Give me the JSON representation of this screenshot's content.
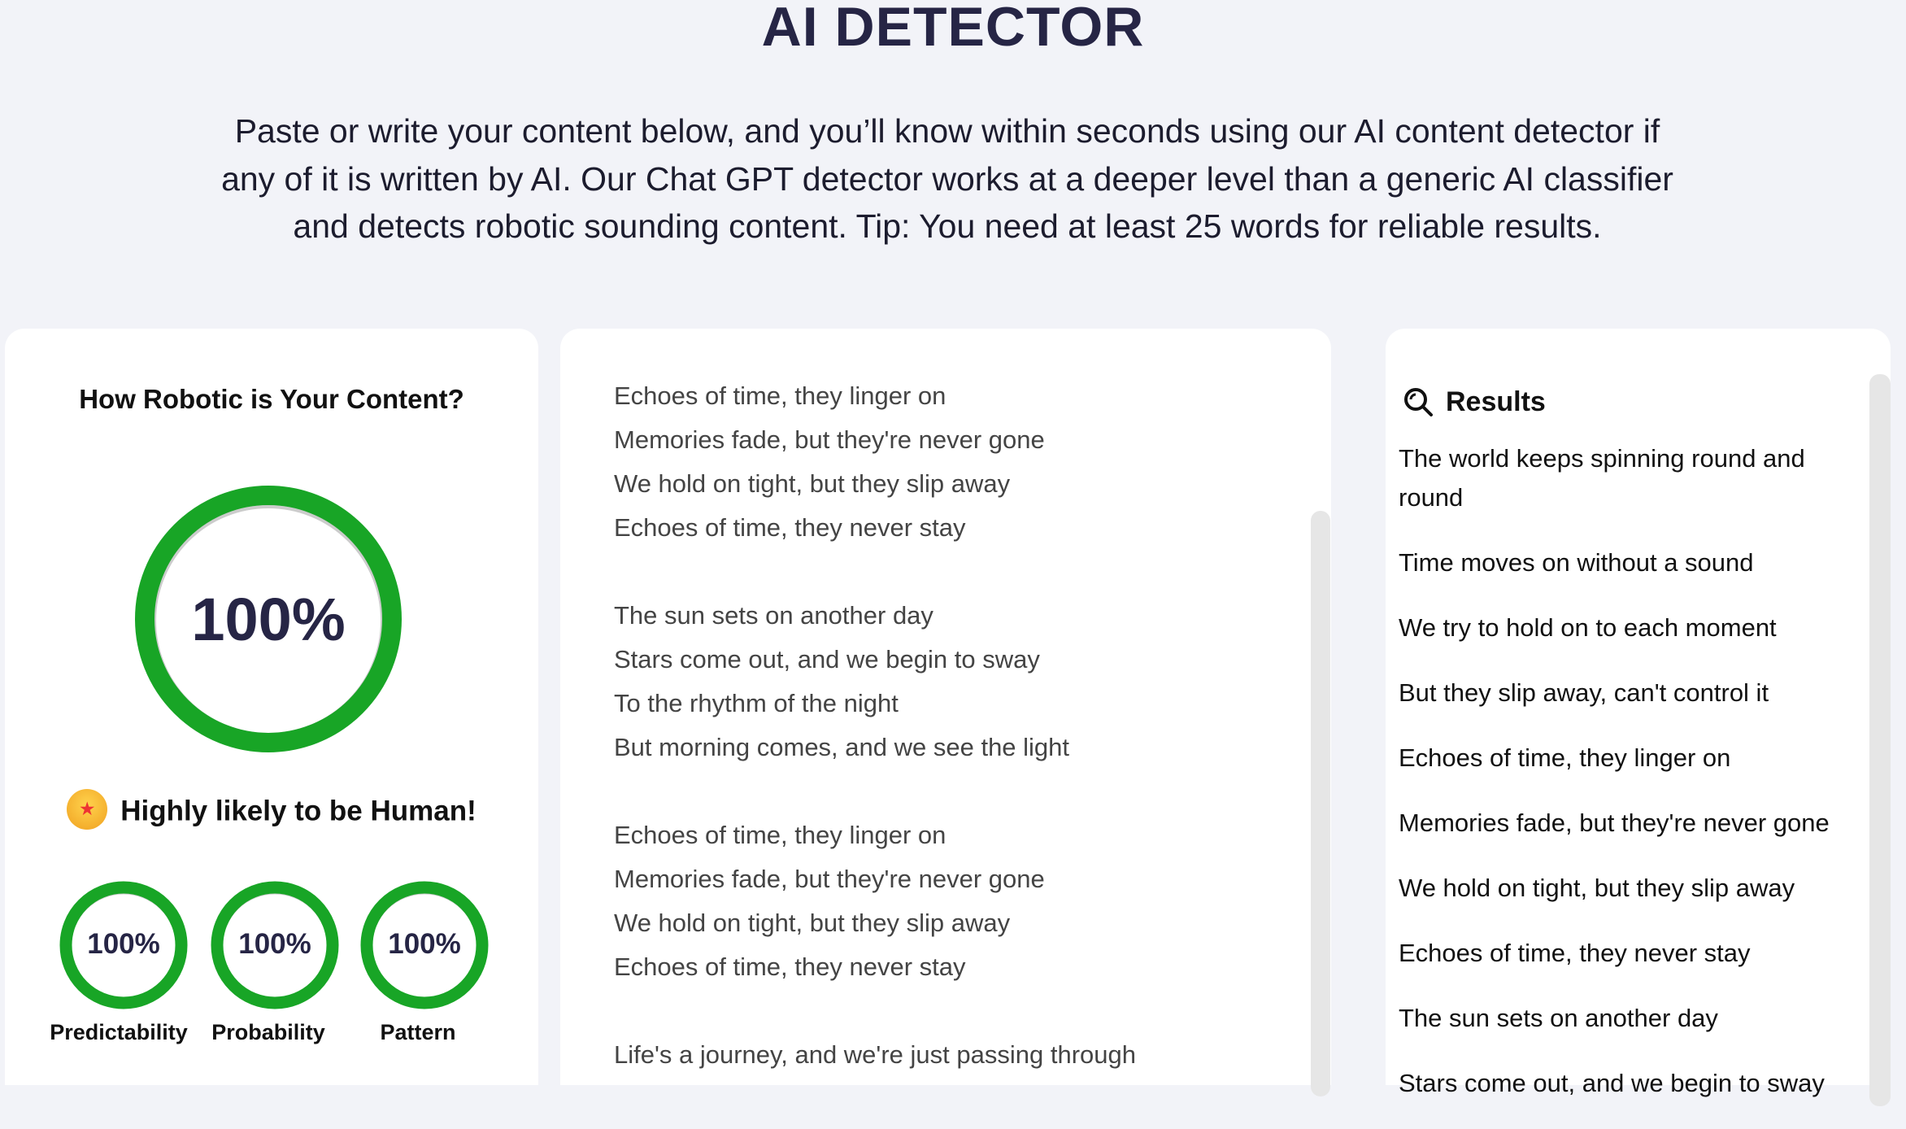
{
  "header": {
    "title": "AI DETECTOR",
    "intro_lines": [
      "Paste or write your content below, and you’ll know within seconds using our AI content detector if",
      "any of it is written by AI. Our Chat GPT detector works at a deeper level than a generic AI classifier",
      "and detects robotic sounding content. Tip: You need at least 25 words for reliable results."
    ]
  },
  "score_panel": {
    "heading": "How Robotic is Your Content?",
    "overall": {
      "value": "100%",
      "fraction": 1.0
    },
    "status": "Highly likely to be Human!",
    "status_icon": "star-struck-emoji",
    "metrics": [
      {
        "label": "Predictability",
        "value": "100%",
        "fraction": 1.0
      },
      {
        "label": "Probability",
        "value": "100%",
        "fraction": 1.0
      },
      {
        "label": "Pattern",
        "value": "100%",
        "fraction": 1.0
      }
    ],
    "accent_color": "#18a526"
  },
  "editor": {
    "lines": [
      "Echoes of time, they linger on",
      "Memories fade, but they're never gone",
      "We hold on tight, but they slip away",
      "Echoes of time, they never stay",
      "",
      "The sun sets on another day",
      "Stars come out, and we begin to sway",
      "To the rhythm of the night",
      "But morning comes, and we see the light",
      "",
      "Echoes of time, they linger on",
      "Memories fade, but they're never gone",
      "We hold on tight, but they slip away",
      "Echoes of time, they never stay",
      "",
      "Life's a journey, and we're just passing through"
    ]
  },
  "results": {
    "heading": "Results",
    "icon": "search-icon",
    "items": [
      "The world keeps spinning round and round",
      "Time moves on without a sound",
      "We try to hold on to each moment",
      "But they slip away, can't control it",
      "Echoes of time, they linger on",
      "Memories fade, but they're never gone",
      "We hold on tight, but they slip away",
      "Echoes of time, they never stay",
      "The sun sets on another day",
      "Stars come out, and we begin to sway"
    ]
  }
}
